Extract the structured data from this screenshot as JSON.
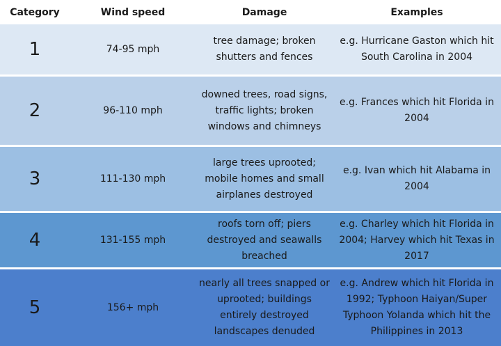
{
  "headers": [
    "Category",
    "Wind speed",
    "Damage",
    "Examples"
  ],
  "rows": [
    {
      "category": "1",
      "wind": "74-95 mph",
      "damage": "tree damage; broken shutters and fences",
      "examples": "e.g. Hurricane Gaston which hit South Carolina in 2004"
    },
    {
      "category": "2",
      "wind": "96-110 mph",
      "damage": "downed trees, road signs, traffic lights; broken windows and chimneys",
      "examples": "e.g. Frances which hit Florida in 2004"
    },
    {
      "category": "3",
      "wind": "111-130 mph",
      "damage": "large trees uprooted; mobile homes and small airplanes destroyed",
      "examples": "e.g. Ivan which hit Alabama in 2004"
    },
    {
      "category": "4",
      "wind": "131-155 mph",
      "damage": "roofs torn off; piers destroyed and seawalls breached",
      "examples": "e.g. Charley which hit Florida in 2004; Harvey which hit Texas in 2017"
    },
    {
      "category": "5",
      "wind": "156+ mph",
      "damage": "nearly all trees snapped or uprooted; buildings entirely destroyed landscapes denuded",
      "examples": "e.g. Andrew which hit Florida in 1992; Typhoon Haiyan/Super Typhoon Yolanda which hit the Philippines in 2013"
    }
  ],
  "colors": {
    "row1": "#dde8f4",
    "row2": "#bad0e9",
    "row3": "#9cbfe3",
    "row4": "#5d97d0",
    "row5": "#4c7fcc"
  }
}
